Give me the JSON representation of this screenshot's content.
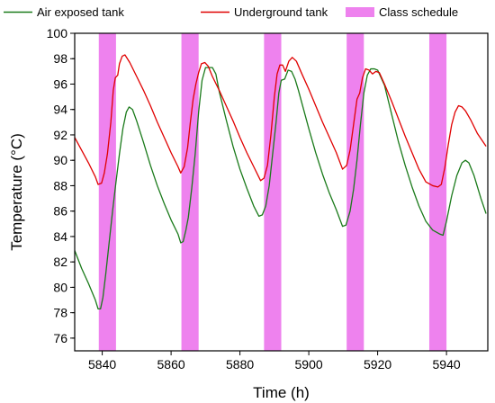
{
  "chart_data": {
    "type": "line",
    "xlabel": "Time (h)",
    "ylabel": "Temperature (°C)",
    "xlim": [
      5832,
      5952
    ],
    "ylim": [
      75,
      100
    ],
    "x_ticks": [
      5840,
      5860,
      5880,
      5900,
      5920,
      5940
    ],
    "y_ticks": [
      76,
      78,
      80,
      82,
      84,
      86,
      88,
      90,
      92,
      94,
      96,
      98,
      100
    ],
    "grid": false,
    "legend_position": "top",
    "legend": [
      {
        "label": "Air exposed tank",
        "color": "#1a7a1a",
        "kind": "line"
      },
      {
        "label": "Underground tank",
        "color": "#e00000",
        "kind": "line"
      },
      {
        "label": "Class schedule",
        "color": "#ee82ee",
        "kind": "bar"
      }
    ],
    "class_schedule": [
      [
        5839,
        5844
      ],
      [
        5863,
        5868
      ],
      [
        5887,
        5892
      ],
      [
        5911,
        5916
      ],
      [
        5935,
        5940
      ]
    ],
    "series": [
      {
        "name": "Air exposed tank",
        "color": "#1a7a1a",
        "points": [
          [
            5832,
            82.9
          ],
          [
            5834,
            81.5
          ],
          [
            5836,
            80.3
          ],
          [
            5838,
            79.0
          ],
          [
            5838.8,
            78.3
          ],
          [
            5839.5,
            78.3
          ],
          [
            5840.2,
            79.2
          ],
          [
            5841,
            81.0
          ],
          [
            5842,
            83.5
          ],
          [
            5843,
            86.0
          ],
          [
            5844,
            88.3
          ],
          [
            5845,
            90.5
          ],
          [
            5846,
            92.5
          ],
          [
            5847,
            93.8
          ],
          [
            5847.8,
            94.2
          ],
          [
            5848.8,
            94.0
          ],
          [
            5850,
            93.1
          ],
          [
            5852,
            91.4
          ],
          [
            5854,
            89.6
          ],
          [
            5856,
            88.0
          ],
          [
            5858,
            86.6
          ],
          [
            5860,
            85.3
          ],
          [
            5862,
            84.2
          ],
          [
            5862.8,
            83.5
          ],
          [
            5863.5,
            83.6
          ],
          [
            5864.3,
            84.5
          ],
          [
            5865,
            85.5
          ],
          [
            5866,
            87.8
          ],
          [
            5867,
            90.5
          ],
          [
            5868,
            93.8
          ],
          [
            5869,
            96.3
          ],
          [
            5870,
            97.3
          ],
          [
            5872,
            97.3
          ],
          [
            5873,
            96.8
          ],
          [
            5874,
            95.4
          ],
          [
            5876,
            93.2
          ],
          [
            5878,
            91.1
          ],
          [
            5880,
            89.3
          ],
          [
            5882,
            87.8
          ],
          [
            5884,
            86.4
          ],
          [
            5885.5,
            85.6
          ],
          [
            5886.5,
            85.7
          ],
          [
            5887.5,
            86.4
          ],
          [
            5888.5,
            88.0
          ],
          [
            5889.5,
            90.5
          ],
          [
            5890.5,
            93.0
          ],
          [
            5891.3,
            95.3
          ],
          [
            5892,
            96.3
          ],
          [
            5893,
            96.4
          ],
          [
            5894,
            97.1
          ],
          [
            5895,
            97.0
          ],
          [
            5896,
            96.4
          ],
          [
            5897,
            95.5
          ],
          [
            5898,
            94.5
          ],
          [
            5900,
            92.5
          ],
          [
            5902,
            90.6
          ],
          [
            5904,
            88.9
          ],
          [
            5906,
            87.4
          ],
          [
            5908,
            86.1
          ],
          [
            5909.8,
            84.8
          ],
          [
            5910.8,
            84.9
          ],
          [
            5912,
            86.0
          ],
          [
            5913,
            87.7
          ],
          [
            5914,
            90.0
          ],
          [
            5915,
            92.8
          ],
          [
            5916,
            95.3
          ],
          [
            5917,
            96.7
          ],
          [
            5918,
            97.2
          ],
          [
            5919,
            97.2
          ],
          [
            5920,
            97.1
          ],
          [
            5922,
            95.9
          ],
          [
            5924,
            93.7
          ],
          [
            5926,
            91.5
          ],
          [
            5928,
            89.6
          ],
          [
            5930,
            87.9
          ],
          [
            5932,
            86.4
          ],
          [
            5934,
            85.2
          ],
          [
            5936,
            84.5
          ],
          [
            5938,
            84.2
          ],
          [
            5939,
            84.1
          ],
          [
            5940,
            85.2
          ],
          [
            5941.5,
            87.2
          ],
          [
            5943,
            88.8
          ],
          [
            5944.5,
            89.8
          ],
          [
            5945.5,
            90.0
          ],
          [
            5946.5,
            89.8
          ],
          [
            5948,
            88.8
          ],
          [
            5950,
            87.0
          ],
          [
            5951.5,
            85.8
          ]
        ]
      },
      {
        "name": "Underground tank",
        "color": "#e00000",
        "points": [
          [
            5832,
            91.8
          ],
          [
            5834,
            90.8
          ],
          [
            5836,
            89.8
          ],
          [
            5838,
            88.7
          ],
          [
            5838.8,
            88.1
          ],
          [
            5839.8,
            88.2
          ],
          [
            5840.6,
            89.0
          ],
          [
            5841.5,
            90.5
          ],
          [
            5842.5,
            93.0
          ],
          [
            5843.2,
            95.5
          ],
          [
            5843.8,
            96.5
          ],
          [
            5844.5,
            96.7
          ],
          [
            5845,
            97.6
          ],
          [
            5845.8,
            98.2
          ],
          [
            5846.6,
            98.3
          ],
          [
            5848,
            97.7
          ],
          [
            5850,
            96.6
          ],
          [
            5852,
            95.5
          ],
          [
            5854,
            94.3
          ],
          [
            5856,
            93.0
          ],
          [
            5858,
            91.8
          ],
          [
            5860,
            90.6
          ],
          [
            5862,
            89.5
          ],
          [
            5862.8,
            89.0
          ],
          [
            5863.8,
            89.5
          ],
          [
            5864.8,
            91.0
          ],
          [
            5865.6,
            93.0
          ],
          [
            5866.4,
            94.8
          ],
          [
            5867.2,
            96.0
          ],
          [
            5868,
            96.9
          ],
          [
            5868.8,
            97.6
          ],
          [
            5869.8,
            97.7
          ],
          [
            5870.8,
            97.4
          ],
          [
            5872,
            96.6
          ],
          [
            5874,
            95.5
          ],
          [
            5876,
            94.3
          ],
          [
            5878,
            93.1
          ],
          [
            5880,
            91.8
          ],
          [
            5882,
            90.6
          ],
          [
            5884,
            89.5
          ],
          [
            5886,
            88.4
          ],
          [
            5887,
            88.6
          ],
          [
            5888,
            89.6
          ],
          [
            5889,
            92.0
          ],
          [
            5890,
            95.0
          ],
          [
            5890.8,
            96.8
          ],
          [
            5891.6,
            97.5
          ],
          [
            5892.4,
            97.5
          ],
          [
            5893.2,
            97.0
          ],
          [
            5894.2,
            97.8
          ],
          [
            5895.2,
            98.1
          ],
          [
            5896.4,
            97.8
          ],
          [
            5898,
            96.8
          ],
          [
            5900,
            95.6
          ],
          [
            5902,
            94.3
          ],
          [
            5904,
            93.0
          ],
          [
            5906,
            91.8
          ],
          [
            5908,
            90.6
          ],
          [
            5909.8,
            89.3
          ],
          [
            5911,
            89.6
          ],
          [
            5912,
            90.8
          ],
          [
            5913,
            92.8
          ],
          [
            5914,
            94.8
          ],
          [
            5914.8,
            95.3
          ],
          [
            5915.6,
            96.5
          ],
          [
            5916.5,
            97.2
          ],
          [
            5917.5,
            97.1
          ],
          [
            5918.5,
            96.8
          ],
          [
            5919.5,
            97.0
          ],
          [
            5920.5,
            96.9
          ],
          [
            5922,
            96.0
          ],
          [
            5924,
            94.7
          ],
          [
            5926,
            93.3
          ],
          [
            5928,
            91.9
          ],
          [
            5930,
            90.6
          ],
          [
            5932,
            89.3
          ],
          [
            5934,
            88.3
          ],
          [
            5936,
            88.0
          ],
          [
            5937.5,
            87.9
          ],
          [
            5938.5,
            88.1
          ],
          [
            5939.5,
            89.4
          ],
          [
            5940.5,
            91.2
          ],
          [
            5941.5,
            92.8
          ],
          [
            5942.5,
            93.8
          ],
          [
            5943.5,
            94.3
          ],
          [
            5944.5,
            94.2
          ],
          [
            5945.5,
            93.9
          ],
          [
            5947,
            93.2
          ],
          [
            5949,
            92.1
          ],
          [
            5951.5,
            91.1
          ]
        ]
      }
    ]
  }
}
